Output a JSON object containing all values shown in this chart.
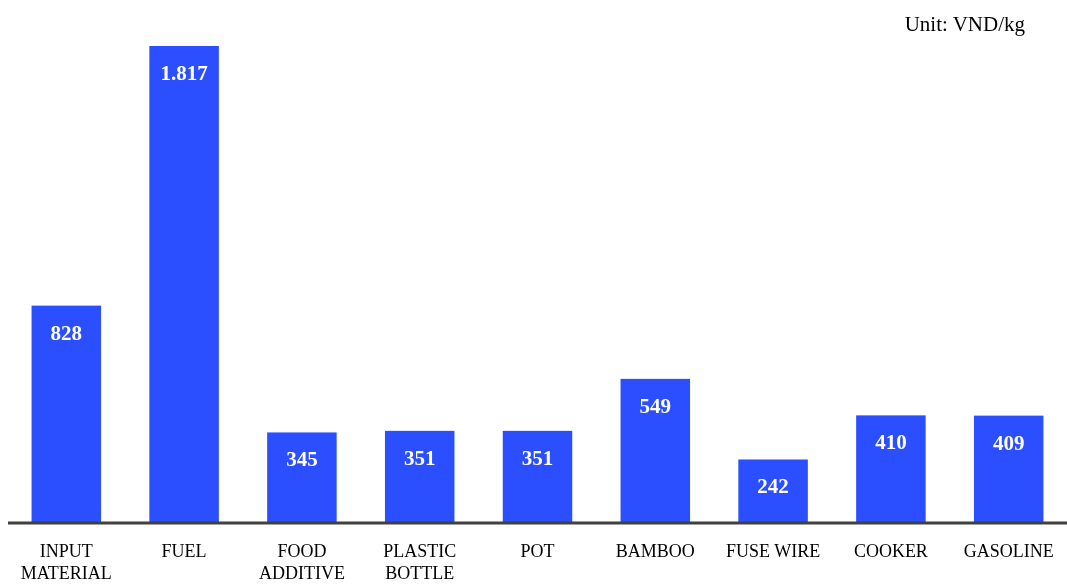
{
  "chart_data": {
    "type": "bar",
    "categories": [
      "INPUT MATERIAL",
      "FUEL",
      "FOOD ADDITIVE",
      "PLASTIC BOTTLE",
      "POT",
      "BAMBOO",
      "FUSE WIRE",
      "COOKER",
      "GASOLINE"
    ],
    "values": [
      828,
      1817,
      345,
      351,
      351,
      549,
      242,
      410,
      409
    ],
    "value_labels": [
      "828",
      "1.817",
      "345",
      "351",
      "351",
      "549",
      "242",
      "410",
      "409"
    ],
    "color": "#2b4fff",
    "annotations": [
      "Unit: VND/kg"
    ]
  }
}
